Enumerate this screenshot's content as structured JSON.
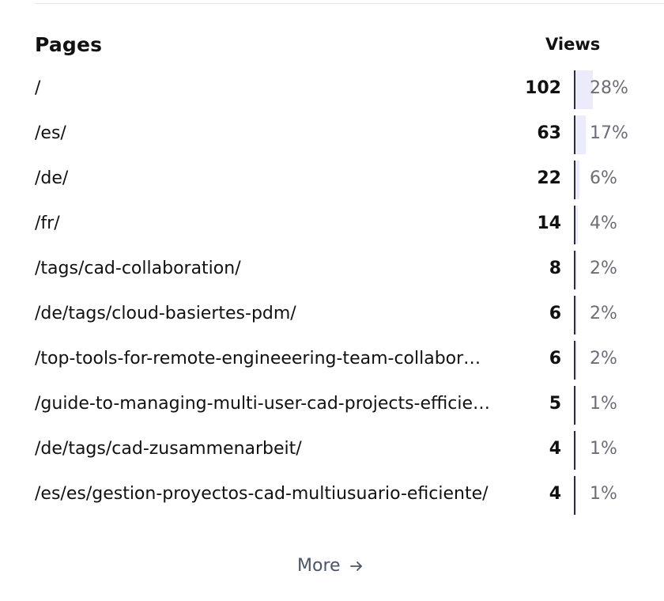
{
  "header": {
    "pages_label": "Pages",
    "views_label": "Views"
  },
  "rows": [
    {
      "path": "/",
      "count": "102",
      "percent": "28%",
      "share": 0.28
    },
    {
      "path": "/es/",
      "count": "63",
      "percent": "17%",
      "share": 0.17
    },
    {
      "path": "/de/",
      "count": "22",
      "percent": "6%",
      "share": 0.06
    },
    {
      "path": "/fr/",
      "count": "14",
      "percent": "4%",
      "share": 0.04
    },
    {
      "path": "/tags/cad-collaboration/",
      "count": "8",
      "percent": "2%",
      "share": 0.02
    },
    {
      "path": "/de/tags/cloud-basiertes-pdm/",
      "count": "6",
      "percent": "2%",
      "share": 0.02
    },
    {
      "path": "/top-tools-for-remote-engineeering-team-collabor…",
      "count": "6",
      "percent": "2%",
      "share": 0.02
    },
    {
      "path": "/guide-to-managing-multi-user-cad-projects-efficie…",
      "count": "5",
      "percent": "1%",
      "share": 0.01
    },
    {
      "path": "/de/tags/cad-zusammenarbeit/",
      "count": "4",
      "percent": "1%",
      "share": 0.01
    },
    {
      "path": "/es/es/gestion-proyectos-cad-multiusuario-eficiente/",
      "count": "4",
      "percent": "1%",
      "share": 0.01
    }
  ],
  "footer": {
    "more_label": "More",
    "more_icon": "arrow-right-icon"
  },
  "colors": {
    "bar_fill": "#ecebfb",
    "bar_axis": "#2d2d3a",
    "percent_text": "#6d6d78",
    "more_text": "#4a5567"
  }
}
